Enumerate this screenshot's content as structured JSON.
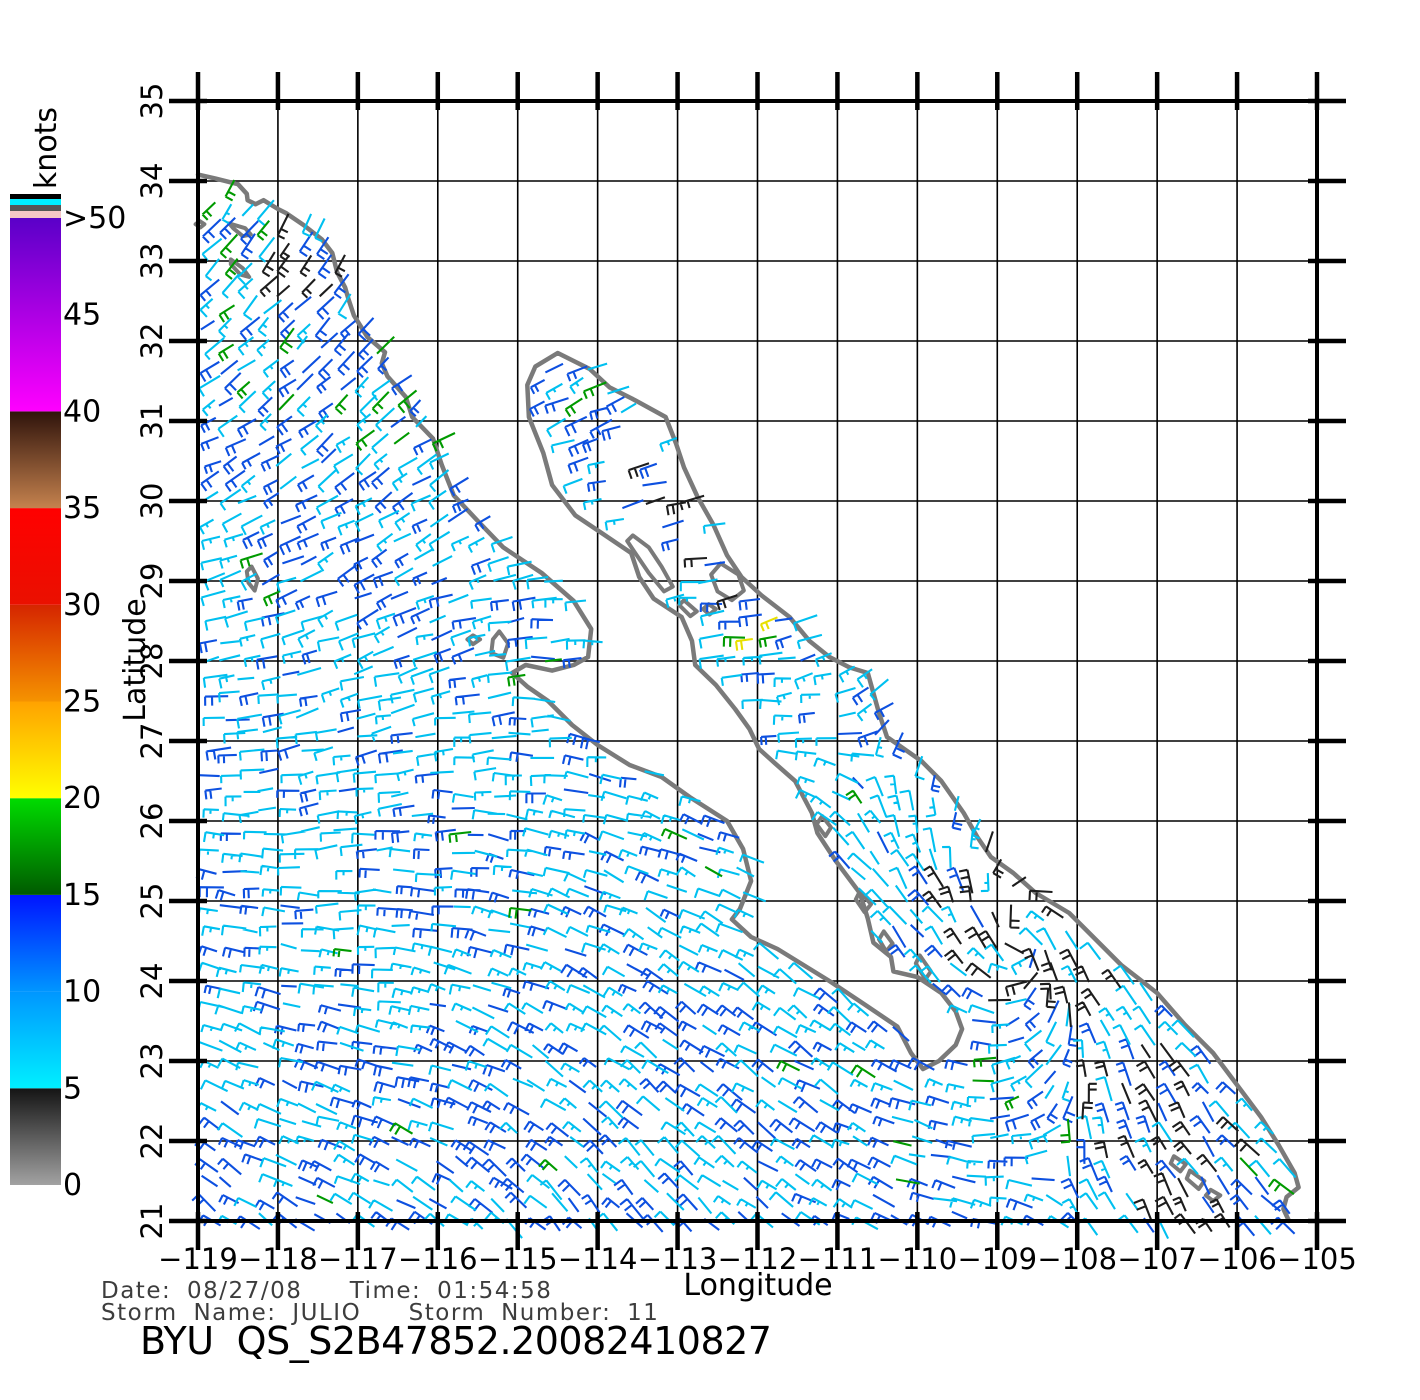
{
  "title": {
    "text": "BYU  QS_S2B47852.20082410827"
  },
  "annotations": {
    "date_time": "Date: 08/27/08   Time: 01:54:58",
    "storm": "Storm Name: JULIO   Storm Number: 11"
  },
  "chart_data": {
    "type": "vector-field-map",
    "title": "BYU  QS_S2B47852.20082410827",
    "subtitle_lines": [
      "Date: 08/27/08   Time: 01:54:58",
      "Storm Name: JULIO   Storm Number: 11"
    ],
    "xlabel": "Longitude",
    "ylabel": "Latitude",
    "xlim": [
      -119,
      -105
    ],
    "ylim": [
      21,
      35
    ],
    "xticks": [
      -119,
      -118,
      -117,
      -116,
      -115,
      -114,
      -113,
      -112,
      -111,
      -110,
      -109,
      -108,
      -107,
      -106,
      -105
    ],
    "yticks": [
      21,
      22,
      23,
      24,
      25,
      26,
      27,
      28,
      29,
      30,
      31,
      32,
      33,
      34,
      35
    ],
    "grid": true,
    "region": "Baja California / Gulf of California, QuikSCAT ocean wind barbs",
    "colorbar": {
      "label": "knots",
      "position": "left",
      "tick_labels": [
        ">50",
        "45",
        "40",
        "35",
        "30",
        "25",
        "20",
        "15",
        "10",
        "5",
        "0"
      ],
      "max_value": 50,
      "segments": [
        {
          "from": 0,
          "to": 5,
          "bottom": "#a2a2a2",
          "top": "#141414"
        },
        {
          "from": 5,
          "to": 10,
          "bottom": "#00f0ff",
          "top": "#0096ff"
        },
        {
          "from": 10,
          "to": 15,
          "bottom": "#0096ff",
          "top": "#0014ff"
        },
        {
          "from": 15,
          "to": 20,
          "bottom": "#005a00",
          "top": "#00dc00"
        },
        {
          "from": 20,
          "to": 25,
          "bottom": "#ffff00",
          "top": "#ffa200"
        },
        {
          "from": 25,
          "to": 30,
          "bottom": "#f59300",
          "top": "#d52500"
        },
        {
          "from": 30,
          "to": 35,
          "bottom": "#ea1000",
          "top": "#ff0000"
        },
        {
          "from": 35,
          "to": 40,
          "bottom": "#c5824e",
          "top": "#2f130b"
        },
        {
          "from": 40,
          "to": 50,
          "bottom": "#ff00ff",
          "top": "#5a00c8"
        }
      ],
      "top_stripes_bottom_to_top": [
        "#f6c6c6",
        "#565656",
        "#00eeff",
        "#000000"
      ]
    },
    "coastline": {
      "color": "#7a7a7a",
      "mainland": [
        [
          34.08,
          -119.0
        ],
        [
          34.03,
          -118.78
        ],
        [
          33.96,
          -118.5
        ],
        [
          33.84,
          -118.39
        ],
        [
          33.76,
          -118.38
        ],
        [
          33.71,
          -118.28
        ],
        [
          33.76,
          -118.18
        ],
        [
          33.65,
          -118.0
        ],
        [
          33.6,
          -117.9
        ],
        [
          33.45,
          -117.68
        ],
        [
          33.27,
          -117.45
        ],
        [
          33.1,
          -117.32
        ],
        [
          32.86,
          -117.26
        ],
        [
          32.67,
          -117.16
        ],
        [
          32.53,
          -117.12
        ],
        [
          32.32,
          -117.05
        ],
        [
          32.05,
          -116.88
        ],
        [
          31.86,
          -116.66
        ],
        [
          31.72,
          -116.7
        ],
        [
          31.56,
          -116.63
        ],
        [
          31.3,
          -116.4
        ],
        [
          31.05,
          -116.32
        ],
        [
          30.78,
          -116.06
        ],
        [
          30.45,
          -115.95
        ],
        [
          30.07,
          -115.8
        ],
        [
          29.75,
          -115.5
        ],
        [
          29.42,
          -115.18
        ],
        [
          29.1,
          -114.7
        ],
        [
          28.75,
          -114.3
        ],
        [
          28.4,
          -114.08
        ],
        [
          28.05,
          -114.12
        ],
        [
          27.95,
          -114.3
        ],
        [
          27.88,
          -114.57
        ],
        [
          27.95,
          -114.9
        ],
        [
          27.85,
          -115.07
        ],
        [
          27.68,
          -114.88
        ],
        [
          27.5,
          -114.62
        ],
        [
          27.2,
          -114.32
        ],
        [
          26.95,
          -114.0
        ],
        [
          26.7,
          -113.6
        ],
        [
          26.55,
          -113.2
        ],
        [
          26.3,
          -112.85
        ],
        [
          26.0,
          -112.38
        ],
        [
          25.65,
          -112.18
        ],
        [
          25.25,
          -112.08
        ],
        [
          24.9,
          -112.22
        ],
        [
          24.77,
          -112.32
        ],
        [
          24.55,
          -112.08
        ],
        [
          24.4,
          -111.75
        ],
        [
          24.0,
          -111.1
        ],
        [
          23.7,
          -110.65
        ],
        [
          23.43,
          -110.25
        ],
        [
          23.1,
          -110.08
        ],
        [
          22.9,
          -109.93
        ],
        [
          23.0,
          -109.73
        ],
        [
          23.2,
          -109.52
        ],
        [
          23.4,
          -109.44
        ],
        [
          23.62,
          -109.52
        ],
        [
          23.85,
          -109.7
        ],
        [
          24.05,
          -110.0
        ],
        [
          24.12,
          -110.3
        ],
        [
          24.3,
          -110.33
        ],
        [
          24.48,
          -110.55
        ],
        [
          24.78,
          -110.62
        ],
        [
          25.1,
          -110.72
        ],
        [
          25.5,
          -111.02
        ],
        [
          25.85,
          -111.25
        ],
        [
          26.1,
          -111.32
        ],
        [
          26.5,
          -111.53
        ],
        [
          26.72,
          -111.78
        ],
        [
          26.9,
          -111.98
        ],
        [
          27.15,
          -112.1
        ],
        [
          27.4,
          -112.28
        ],
        [
          27.7,
          -112.52
        ],
        [
          27.95,
          -112.78
        ],
        [
          28.25,
          -112.82
        ],
        [
          28.55,
          -112.95
        ],
        [
          28.78,
          -113.3
        ],
        [
          29.05,
          -113.48
        ],
        [
          29.35,
          -113.58
        ],
        [
          29.6,
          -113.95
        ],
        [
          29.82,
          -114.28
        ],
        [
          30.2,
          -114.57
        ],
        [
          30.6,
          -114.68
        ],
        [
          31.05,
          -114.86
        ],
        [
          31.45,
          -114.88
        ],
        [
          31.68,
          -114.78
        ],
        [
          31.85,
          -114.5
        ],
        [
          31.65,
          -114.1
        ],
        [
          31.42,
          -113.85
        ],
        [
          31.28,
          -113.57
        ],
        [
          31.05,
          -113.15
        ],
        [
          30.72,
          -113.02
        ],
        [
          30.42,
          -112.92
        ],
        [
          30.05,
          -112.75
        ],
        [
          29.7,
          -112.55
        ],
        [
          29.32,
          -112.38
        ],
        [
          29.05,
          -112.2
        ],
        [
          28.82,
          -111.95
        ],
        [
          28.55,
          -111.6
        ],
        [
          28.25,
          -111.35
        ],
        [
          28.05,
          -111.1
        ],
        [
          27.92,
          -110.85
        ],
        [
          27.85,
          -110.62
        ],
        [
          27.6,
          -110.55
        ],
        [
          27.35,
          -110.48
        ],
        [
          27.05,
          -110.38
        ],
        [
          26.75,
          -109.95
        ],
        [
          26.5,
          -109.7
        ],
        [
          26.1,
          -109.42
        ],
        [
          25.8,
          -109.25
        ],
        [
          25.55,
          -109.08
        ],
        [
          25.35,
          -108.8
        ],
        [
          25.1,
          -108.52
        ],
        [
          24.85,
          -108.1
        ],
        [
          24.55,
          -107.8
        ],
        [
          24.2,
          -107.45
        ],
        [
          23.85,
          -107.0
        ],
        [
          23.45,
          -106.65
        ],
        [
          23.1,
          -106.3
        ],
        [
          22.7,
          -106.0
        ],
        [
          22.3,
          -105.7
        ],
        [
          21.95,
          -105.48
        ],
        [
          21.6,
          -105.28
        ],
        [
          21.42,
          -105.23
        ],
        [
          21.3,
          -105.38
        ],
        [
          21.15,
          -105.42
        ],
        [
          21.0,
          -105.35
        ]
      ],
      "land_close_points": [
        [
          20.7,
          -105.2
        ],
        [
          20.7,
          -104.0
        ],
        [
          36.0,
          -104.0
        ],
        [
          36.0,
          -119.8
        ],
        [
          34.3,
          -119.8
        ],
        [
          34.2,
          -119.2
        ]
      ],
      "islands": [
        [
          [
            33.47,
            -118.61
          ],
          [
            33.41,
            -118.41
          ],
          [
            33.33,
            -118.34
          ],
          [
            33.31,
            -118.44
          ],
          [
            33.41,
            -118.56
          ]
        ],
        [
          [
            33.02,
            -118.59
          ],
          [
            32.91,
            -118.44
          ],
          [
            32.8,
            -118.36
          ],
          [
            32.83,
            -118.47
          ],
          [
            32.96,
            -118.59
          ]
        ],
        [
          [
            33.5,
            -118.98
          ],
          [
            33.46,
            -118.92
          ],
          [
            33.42,
            -118.97
          ],
          [
            33.46,
            -119.03
          ]
        ],
        [
          [
            29.18,
            -118.33
          ],
          [
            29.03,
            -118.25
          ],
          [
            28.88,
            -118.29
          ],
          [
            28.98,
            -118.37
          ],
          [
            29.12,
            -118.39
          ]
        ],
        [
          [
            28.37,
            -115.23
          ],
          [
            28.22,
            -115.12
          ],
          [
            28.04,
            -115.18
          ],
          [
            28.1,
            -115.33
          ],
          [
            28.27,
            -115.31
          ]
        ],
        [
          [
            28.32,
            -115.56
          ],
          [
            28.27,
            -115.47
          ],
          [
            28.21,
            -115.56
          ],
          [
            28.27,
            -115.63
          ]
        ],
        [
          [
            29.57,
            -113.56
          ],
          [
            29.42,
            -113.36
          ],
          [
            29.18,
            -113.2
          ],
          [
            28.93,
            -113.06
          ],
          [
            28.87,
            -113.17
          ],
          [
            29.1,
            -113.36
          ],
          [
            29.38,
            -113.55
          ],
          [
            29.5,
            -113.63
          ]
        ],
        [
          [
            29.22,
            -112.46
          ],
          [
            29.08,
            -112.24
          ],
          [
            28.88,
            -112.17
          ],
          [
            28.76,
            -112.32
          ],
          [
            28.87,
            -112.5
          ],
          [
            29.08,
            -112.58
          ]
        ],
        [
          [
            28.71,
            -112.61
          ],
          [
            28.65,
            -112.52
          ],
          [
            28.58,
            -112.6
          ],
          [
            28.65,
            -112.68
          ]
        ],
        [
          [
            28.76,
            -112.92
          ],
          [
            28.62,
            -112.76
          ],
          [
            28.56,
            -112.84
          ],
          [
            28.7,
            -112.98
          ]
        ],
        [
          [
            26.06,
            -111.19
          ],
          [
            25.92,
            -111.08
          ],
          [
            25.81,
            -111.15
          ],
          [
            25.96,
            -111.26
          ]
        ],
        [
          [
            25.12,
            -110.72
          ],
          [
            24.96,
            -110.58
          ],
          [
            24.86,
            -110.66
          ],
          [
            25.02,
            -110.77
          ]
        ],
        [
          [
            24.62,
            -110.42
          ],
          [
            24.47,
            -110.31
          ],
          [
            24.37,
            -110.39
          ],
          [
            24.52,
            -110.48
          ]
        ],
        [
          [
            24.32,
            -109.97
          ],
          [
            24.12,
            -109.83
          ],
          [
            24.02,
            -109.9
          ],
          [
            24.22,
            -110.02
          ]
        ],
        [
          [
            21.81,
            -106.79
          ],
          [
            21.71,
            -106.64
          ],
          [
            21.62,
            -106.71
          ],
          [
            21.72,
            -106.83
          ]
        ],
        [
          [
            21.63,
            -106.59
          ],
          [
            21.5,
            -106.41
          ],
          [
            21.4,
            -106.48
          ],
          [
            21.53,
            -106.63
          ]
        ],
        [
          [
            21.39,
            -106.33
          ],
          [
            21.32,
            -106.21
          ],
          [
            21.25,
            -106.3
          ],
          [
            21.32,
            -106.39
          ]
        ]
      ]
    },
    "wind_field": {
      "description": "Scatterometer ocean wind barbs colored by speed; cyan 5-10 kt, blue 10-15 kt, green ~15-20 kt, yellow ~20-25 kt, black = rain-flagged",
      "units": "knots",
      "typical_speed_range_kt": [
        5,
        15
      ],
      "grid_step_deg": 0.24,
      "swath_north_limit_lat": 34.05,
      "barb_colors": {
        "cyan": "#00c0f0",
        "blue": "#0d50e0",
        "green": "#009a00",
        "black": "#1d1d1d",
        "yellow": "#e8e000"
      },
      "apparent_circulation_center": [
        24.6,
        -108.8
      ],
      "black_flag_clusters": [
        [
          24.6,
          -108.6,
          1.15,
          0.6
        ],
        [
          25.3,
          -109.4,
          0.55,
          0.35
        ],
        [
          30.2,
          -112.9,
          0.95,
          0.5
        ],
        [
          32.95,
          -117.8,
          0.55,
          0.55
        ],
        [
          21.7,
          -106.6,
          0.8,
          0.5
        ],
        [
          22.6,
          -107.5,
          0.9,
          0.3
        ]
      ],
      "green_clusters": [
        [
          22.9,
          -109.45,
          0.38,
          0.5
        ],
        [
          31.35,
          -114.35,
          0.3,
          0.4
        ]
      ],
      "mixed_high_speed_spot": [
        28.55,
        -112.15,
        0.42
      ],
      "random_seed": 11
    }
  }
}
